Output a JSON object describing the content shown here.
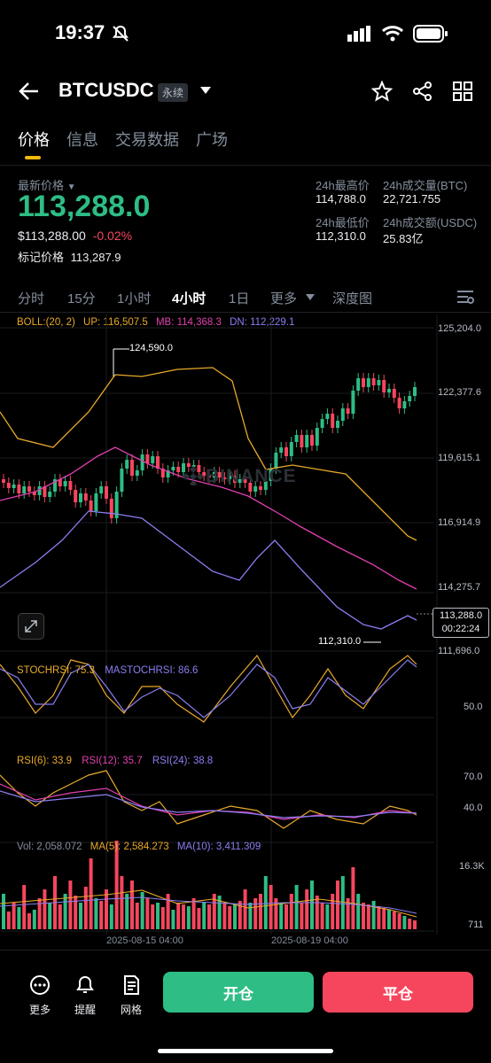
{
  "status": {
    "time": "19:37"
  },
  "header": {
    "symbol": "BTCUSDC",
    "tag": "永续"
  },
  "tabs": [
    {
      "label": "价格",
      "active": true
    },
    {
      "label": "信息",
      "active": false
    },
    {
      "label": "交易数据",
      "active": false
    },
    {
      "label": "广场",
      "active": false
    }
  ],
  "price": {
    "label": "最新价格",
    "last": "113,288.0",
    "usd": "$113,288.00",
    "change": "-0.02%",
    "mark_label": "标记价格",
    "mark": "113,287.9"
  },
  "stats": {
    "high_label": "24h最高价",
    "high": "114,788.0",
    "low_label": "24h最低价",
    "low": "112,310.0",
    "vol_btc_label": "24h成交量(BTC)",
    "vol_btc": "22,721.755",
    "vol_usdc_label": "24h成交额(USDC)",
    "vol_usdc": "25.83亿"
  },
  "intervals": [
    {
      "label": "分时",
      "active": false
    },
    {
      "label": "15分",
      "active": false
    },
    {
      "label": "1小时",
      "active": false
    },
    {
      "label": "4小时",
      "active": true
    },
    {
      "label": "1日",
      "active": false
    },
    {
      "label": "更多",
      "active": false
    },
    {
      "label": "深度图",
      "active": false
    }
  ],
  "boll": {
    "label": "BOLL:(20, 2)",
    "up": "UP: 116,507.5",
    "mb": "MB: 114,368.3",
    "dn": "DN: 112,229.1"
  },
  "price_axis": [
    "125,204.0",
    "122,377.6",
    "119,615.1",
    "116,914.9",
    "114,275.7",
    "111,696.0"
  ],
  "current_price_box": {
    "price": "113,288.0",
    "countdown": "00:22:24"
  },
  "annotations": {
    "high": "124,590.0",
    "low": "112,310.0"
  },
  "watermark": "BINANCE",
  "stoch": {
    "a": "STOCHRSI: 75.3",
    "b": "MASTOCHRSI: 86.6",
    "axis": "50.0"
  },
  "rsi": {
    "a": "RSI(6): 33.9",
    "b": "RSI(12): 35.7",
    "c": "RSI(24): 38.8",
    "axis_top": "70.0",
    "axis_mid": "40.0"
  },
  "vol": {
    "a": "Vol: 2,058.072",
    "b": "MA(5): 2,584.273",
    "c": "MA(10): 3,411.309",
    "axis_top": "16.3K",
    "axis_bottom": "711"
  },
  "dates": [
    "2025-08-15 04:00",
    "2025-08-19 04:00"
  ],
  "footer": [
    {
      "label": "更多",
      "icon": "more-icon"
    },
    {
      "label": "提醒",
      "icon": "bell-icon"
    },
    {
      "label": "网格",
      "icon": "grid-icon"
    }
  ],
  "actions": {
    "open": "开仓",
    "close": "平仓"
  },
  "colors": {
    "up": "#2ebd85",
    "down": "#f6465d",
    "accent": "#f0b90b",
    "boll_up": "#e8a92b",
    "boll_mb": "#e040b0",
    "boll_dn": "#8a7ef0"
  }
}
